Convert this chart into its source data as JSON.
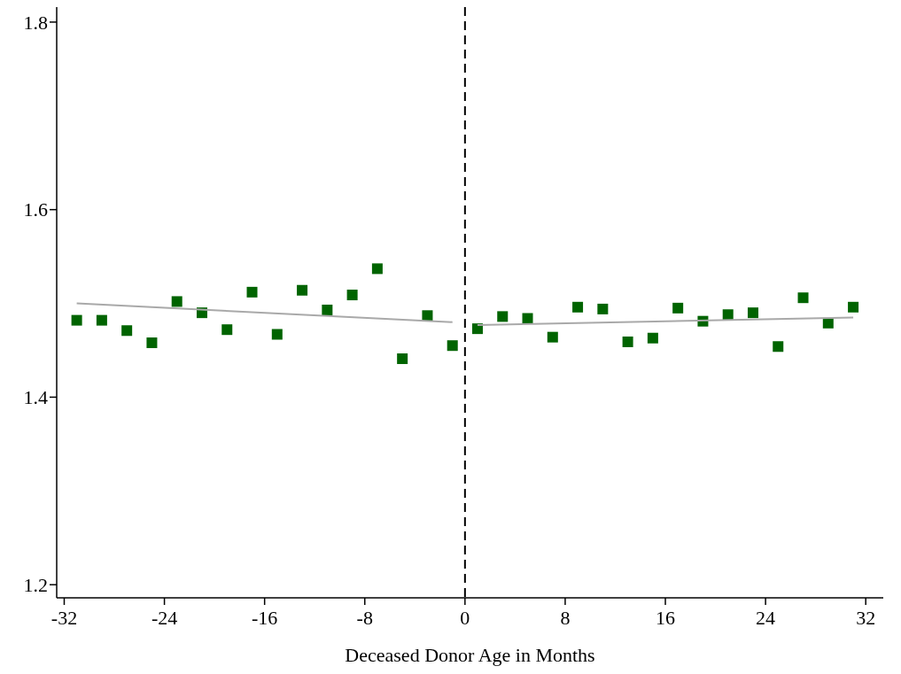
{
  "chart_data": {
    "type": "scatter",
    "xlabel": "Deceased Donor Age in Months",
    "xlim": [
      -32.6,
      33.4
    ],
    "ylim": [
      1.186,
      1.816
    ],
    "xticks": [
      -32,
      -24,
      -16,
      -8,
      0,
      8,
      16,
      24,
      32
    ],
    "yticks": [
      1.2,
      1.4,
      1.6,
      1.8
    ],
    "grid": false,
    "series": [
      {
        "color": "#006400",
        "marker": "square",
        "x": [
          -31,
          -29,
          -27,
          -25,
          -23,
          -21,
          -19,
          -17,
          -15,
          -13,
          -11,
          -9,
          -7,
          -5,
          -3,
          -1,
          1,
          3,
          5,
          7,
          9,
          11,
          13,
          15,
          17,
          19,
          21,
          23,
          25,
          27,
          29,
          31
        ],
        "values": [
          1.482,
          1.482,
          1.471,
          1.458,
          1.502,
          1.49,
          1.472,
          1.512,
          1.467,
          1.514,
          1.493,
          1.509,
          1.537,
          1.441,
          1.487,
          1.455,
          1.473,
          1.486,
          1.484,
          1.464,
          1.496,
          1.494,
          1.459,
          1.463,
          1.495,
          1.481,
          1.488,
          1.49,
          1.454,
          1.506,
          1.479,
          1.496
        ]
      },
      {
        "type": "line",
        "color": "#a9a9a9",
        "x": [
          -31,
          -1
        ],
        "values": [
          1.5,
          1.48
        ]
      },
      {
        "type": "line",
        "color": "#a9a9a9",
        "x": [
          1,
          31
        ],
        "values": [
          1.477,
          1.485
        ]
      }
    ],
    "ref_lines": [
      {
        "axis": "x",
        "value": 0,
        "color": "#000000",
        "line_style": "dashed"
      }
    ]
  }
}
